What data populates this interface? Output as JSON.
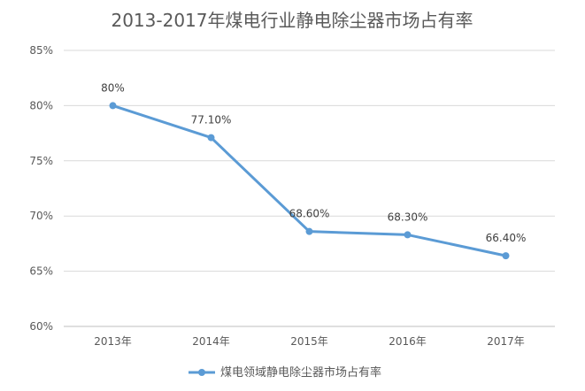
{
  "chart_data": {
    "type": "line",
    "title": "2013-2017年煤电行业静电除尘器市场占有率",
    "categories": [
      "2013年",
      "2014年",
      "2015年",
      "2016年",
      "2017年"
    ],
    "series": [
      {
        "name": "煤电领域静电除尘器市场占有率",
        "values": [
          80,
          77.1,
          68.6,
          68.3,
          66.4
        ],
        "labels": [
          "80%",
          "77.10%",
          "68.60%",
          "68.30%",
          "66.40%"
        ],
        "color": "#5b9bd5"
      }
    ],
    "ylim": [
      60,
      85
    ],
    "yticks": [
      60,
      65,
      70,
      75,
      80,
      85
    ],
    "ytick_labels": [
      "60%",
      "65%",
      "70%",
      "75%",
      "80%",
      "85%"
    ],
    "xlabel": "",
    "ylabel": "",
    "grid": true,
    "legend": "bottom"
  }
}
